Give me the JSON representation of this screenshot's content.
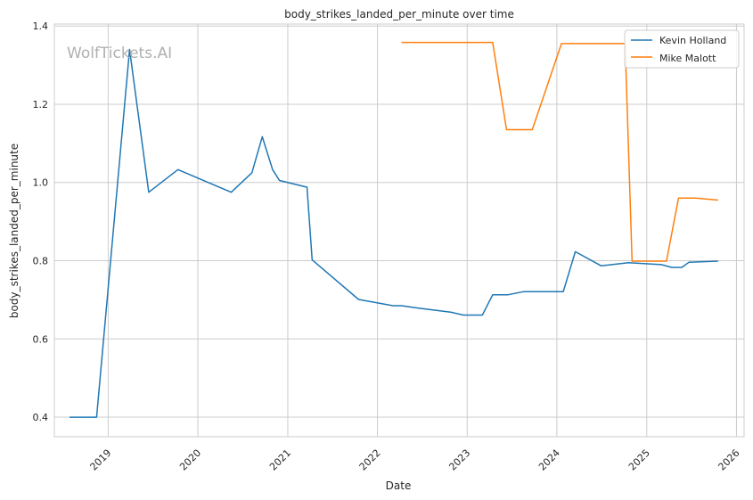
{
  "chart_data": {
    "type": "line",
    "title": "body_strikes_landed_per_minute over time",
    "xlabel": "Date",
    "ylabel": "body_strikes_landed_per_minute",
    "watermark": "WolfTickets.AI",
    "x_ticks": [
      "2019",
      "2020",
      "2021",
      "2022",
      "2023",
      "2024",
      "2025",
      "2026"
    ],
    "y_ticks": [
      "0.4",
      "0.6",
      "0.8",
      "1.0",
      "1.2",
      "1.4"
    ],
    "xlim": [
      "2018-05-27",
      "2026-02-01"
    ],
    "ylim": [
      0.35,
      1.405
    ],
    "grid": true,
    "legend_position": "top-right",
    "series": [
      {
        "name": "Kevin Holland",
        "color": "#1f77b4",
        "points": [
          [
            "2018-07-28",
            0.4
          ],
          [
            "2018-11-15",
            0.4
          ],
          [
            "2019-03-29",
            1.34
          ],
          [
            "2019-06-15",
            0.975
          ],
          [
            "2019-10-12",
            1.033
          ],
          [
            "2020-05-16",
            0.975
          ],
          [
            "2020-08-08",
            1.025
          ],
          [
            "2020-09-19",
            1.117
          ],
          [
            "2020-10-31",
            1.033
          ],
          [
            "2020-11-28",
            1.005
          ],
          [
            "2021-03-20",
            0.988
          ],
          [
            "2021-04-10",
            0.802
          ],
          [
            "2021-10-16",
            0.701
          ],
          [
            "2022-03-05",
            0.685
          ],
          [
            "2022-04-09",
            0.685
          ],
          [
            "2022-06-04",
            0.68
          ],
          [
            "2022-10-29",
            0.668
          ],
          [
            "2022-12-17",
            0.661
          ],
          [
            "2023-03-04",
            0.661
          ],
          [
            "2023-04-15",
            0.713
          ],
          [
            "2023-06-17",
            0.713
          ],
          [
            "2023-08-19",
            0.721
          ],
          [
            "2023-11-11",
            0.721
          ],
          [
            "2024-01-27",
            0.721
          ],
          [
            "2024-03-16",
            0.823
          ],
          [
            "2024-06-29",
            0.787
          ],
          [
            "2024-10-19",
            0.795
          ],
          [
            "2025-03-01",
            0.79
          ],
          [
            "2025-04-12",
            0.783
          ],
          [
            "2025-05-24",
            0.783
          ],
          [
            "2025-06-21",
            0.796
          ],
          [
            "2025-10-18",
            0.799
          ]
        ]
      },
      {
        "name": "Mike Malott",
        "color": "#ff7f0e",
        "points": [
          [
            "2022-04-09",
            1.358
          ],
          [
            "2023-04-15",
            1.358
          ],
          [
            "2023-06-10",
            1.135
          ],
          [
            "2023-09-23",
            1.135
          ],
          [
            "2024-01-20",
            1.355
          ],
          [
            "2024-10-05",
            1.355
          ],
          [
            "2024-11-02",
            0.799
          ],
          [
            "2025-03-22",
            0.799
          ],
          [
            "2025-05-10",
            0.96
          ],
          [
            "2025-07-19",
            0.96
          ],
          [
            "2025-10-18",
            0.955
          ]
        ]
      }
    ]
  }
}
